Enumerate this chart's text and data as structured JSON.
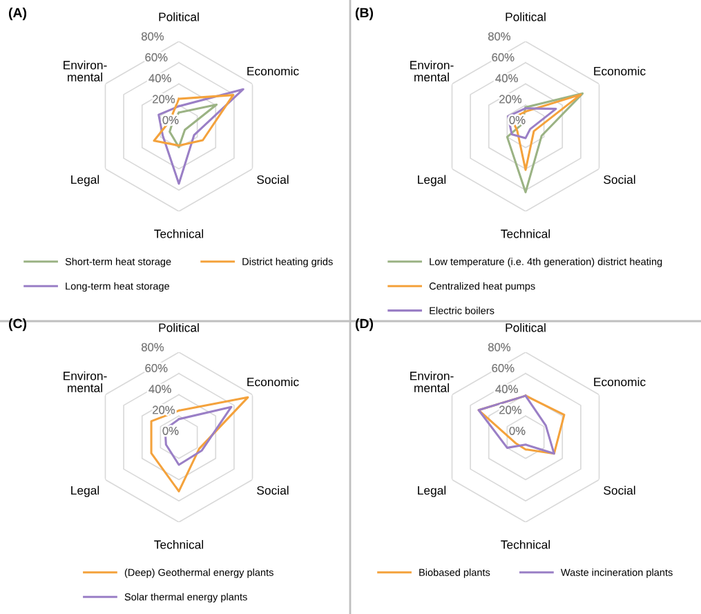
{
  "chart_data": [
    {
      "type": "radar",
      "title": "(A)",
      "categories": [
        "Political",
        "Economic",
        "Social",
        "Technical",
        "Legal",
        "Environ-\nmental"
      ],
      "ylim": [
        0,
        80
      ],
      "yticks": [
        {
          "value": 0,
          "label": "0%"
        },
        {
          "value": 20,
          "label": "20%"
        },
        {
          "value": 40,
          "label": "40%"
        },
        {
          "value": 60,
          "label": "60%"
        },
        {
          "value": 80,
          "label": "80%"
        }
      ],
      "grid": true,
      "legend": "bottom",
      "series": [
        {
          "name": "Short-term heat storage",
          "color": "#9bb384",
          "values": [
            13,
            41,
            6.5,
            19.5,
            10,
            7
          ]
        },
        {
          "name": "Long-term heat storage",
          "color": "#9a7fc6",
          "values": [
            19,
            70,
            16.5,
            54,
            17.5,
            22
          ]
        },
        {
          "name": "District heating grids",
          "color": "#f4a23c",
          "values": [
            26,
            59,
            26,
            18,
            27,
            10
          ]
        }
      ]
    },
    {
      "type": "radar",
      "title": "(B)",
      "categories": [
        "Political",
        "Economic",
        "Social",
        "Technical",
        "Legal",
        "Environ-\nmental"
      ],
      "ylim": [
        0,
        80
      ],
      "yticks": [
        {
          "value": 0,
          "label": "0%"
        },
        {
          "value": 20,
          "label": "20%"
        },
        {
          "value": 40,
          "label": "40%"
        },
        {
          "value": 60,
          "label": "60%"
        },
        {
          "value": 80,
          "label": "80%"
        }
      ],
      "grid": true,
      "legend": "bottom",
      "series": [
        {
          "name": "Low temperature (i.e. 4th generation) district heating",
          "color": "#9bb384",
          "values": [
            18,
            62,
            17.5,
            62,
            20,
            4
          ]
        },
        {
          "name": "Centralized heat pumps",
          "color": "#f4a23c",
          "values": [
            14,
            60,
            9,
            41,
            9,
            15
          ]
        },
        {
          "name": "Electric boilers",
          "color": "#9a7fc6",
          "values": [
            17,
            33,
            5,
            11,
            15,
            19
          ]
        }
      ]
    },
    {
      "type": "radar",
      "title": "(C)",
      "categories": [
        "Political",
        "Economic",
        "Social",
        "Technical",
        "Legal",
        "Environ-\nmental"
      ],
      "ylim": [
        0,
        80
      ],
      "yticks": [
        {
          "value": 0,
          "label": "0%"
        },
        {
          "value": 20,
          "label": "20%"
        },
        {
          "value": 40,
          "label": "40%"
        },
        {
          "value": 60,
          "label": "60%"
        },
        {
          "value": 80,
          "label": "80%"
        }
      ],
      "grid": true,
      "legend": "bottom",
      "series": [
        {
          "name": "(Deep) Geothermal energy plants",
          "color": "#f4a23c",
          "values": [
            25,
            75,
            22,
            51,
            30,
            30
          ]
        },
        {
          "name": "Solar thermal energy plants",
          "color": "#9a7fc6",
          "values": [
            17,
            57,
            25,
            26,
            14,
            15
          ]
        }
      ]
    },
    {
      "type": "radar",
      "title": "(D)",
      "categories": [
        "Political",
        "Economic",
        "Social",
        "Technical",
        "Legal",
        "Environ-\nmental"
      ],
      "ylim": [
        0,
        80
      ],
      "yticks": [
        {
          "value": 0,
          "label": "0%"
        },
        {
          "value": 20,
          "label": "20%"
        },
        {
          "value": 40,
          "label": "40%"
        },
        {
          "value": 60,
          "label": "60%"
        },
        {
          "value": 80,
          "label": "80%"
        }
      ],
      "grid": true,
      "legend": "bottom",
      "series": [
        {
          "name": "Biobased plants",
          "color": "#f4a23c",
          "values": [
            39,
            42,
            31,
            11.5,
            11,
            51
          ]
        },
        {
          "name": "Waste incineration plants",
          "color": "#9a7fc6",
          "values": [
            39,
            22,
            31,
            7,
            20,
            51
          ]
        }
      ]
    }
  ]
}
